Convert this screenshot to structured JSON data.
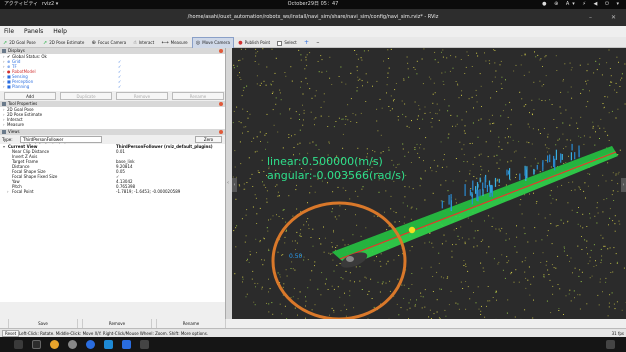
{
  "system_bar": {
    "activities": "アクティビティ",
    "app_menu": "rviz2 ▾",
    "clock": "October29日 05：47",
    "tray": "● ⊕ A▾ ⚡ ◀ ⏻ ▾"
  },
  "window": {
    "title": "/home/asahi/ouxt_automation/robotx_ws/install/navi_sim/share/navi_sim/config/navi_sim.rviz* - RViz",
    "minimize": "–",
    "close": "✕"
  },
  "menu": {
    "file": "File",
    "panels": "Panels",
    "help": "Help"
  },
  "toolbar": {
    "goal_pose": "2D Goal Pose",
    "pose_estimate": "2D Pose Estimate",
    "focus_camera": "Focus Camera",
    "interact": "Interact",
    "measure": "Measure",
    "move_camera": "Move Camera",
    "publish_point": "Publish Point",
    "select": "Select",
    "plus": "+",
    "minus": "–"
  },
  "displays": {
    "header": "Displays",
    "items": [
      {
        "label": "Global Status: Ok",
        "color": "#111111",
        "icon": "✔",
        "checked": ""
      },
      {
        "label": "Grid",
        "color": "#2a6de0",
        "icon": "⊕",
        "checked": "✓"
      },
      {
        "label": "TF",
        "color": "#2a6de0",
        "icon": "⊕",
        "checked": "✓"
      },
      {
        "label": "RobotModel",
        "color": "#d03030",
        "icon": "●",
        "checked": "✓"
      },
      {
        "label": "Sensing",
        "color": "#2a6de0",
        "icon": "■",
        "checked": "✓"
      },
      {
        "label": "Perception",
        "color": "#2a6de0",
        "icon": "■",
        "checked": "✓"
      },
      {
        "label": "Planning",
        "color": "#2a6de0",
        "icon": "■",
        "checked": "✓"
      }
    ],
    "buttons": {
      "add": "Add",
      "duplicate": "Duplicate",
      "remove": "Remove",
      "rename": "Rename"
    }
  },
  "tool_properties": {
    "header": "Tool Properties",
    "items": [
      "2D Goal Pose",
      "2D Pose Estimate",
      "Interact",
      "Measure"
    ]
  },
  "views": {
    "header": "Views",
    "type_label": "Type:",
    "type_value": "ThirdPersonFollower (rviz_default_plugins)",
    "zero": "Zero",
    "current_view": {
      "key": "Current View",
      "value": "ThirdPersonFollower (rviz_default_plugins)"
    },
    "props": [
      {
        "k": "Near Clip Distance",
        "v": "0.01"
      },
      {
        "k": "Invert Z Axis",
        "v": ""
      },
      {
        "k": "Target Frame",
        "v": "base_link"
      },
      {
        "k": "Distance",
        "v": "9.20814"
      },
      {
        "k": "Focal Shape Size",
        "v": "0.05"
      },
      {
        "k": "Focal Shape Fixed Size",
        "v": "✓"
      },
      {
        "k": "Yaw",
        "v": "4.13042"
      },
      {
        "k": "Pitch",
        "v": "0.765398"
      },
      {
        "k": "Focal Point",
        "v": "-1.7819; -1.6453; -0.000020589"
      }
    ],
    "buttons": {
      "save": "Save",
      "remove": "Remove",
      "rename": "Rename"
    }
  },
  "status": {
    "reset": "Reset",
    "message": "Left-Click: Rotate. Middle-Click: Move X/Y. Right-Click/Mouse Wheel: Zoom. Shift: More options.",
    "fps": "31 fps"
  },
  "viewport": {
    "linear": "linear:0.500000(m/s)",
    "angular": "angular:-0.003566(rad/s)",
    "scale_label": "0.50",
    "colors": {
      "cloud": "#d9d34a",
      "path": "#2fd14a",
      "centerline": "#e8332b",
      "circle": "#d9782a",
      "text": "#2fe08c",
      "robot": "#3a3a3a"
    }
  }
}
